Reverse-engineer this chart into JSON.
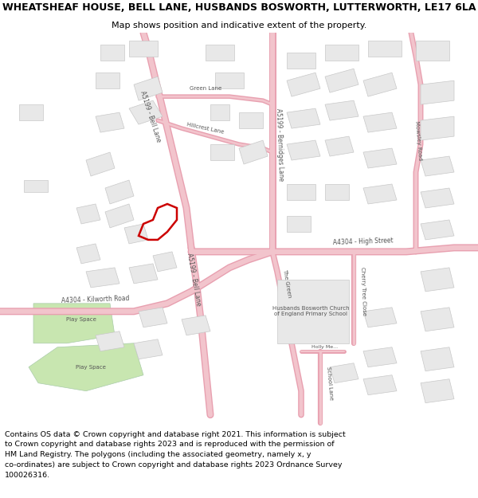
{
  "title_line1": "WHEATSHEAF HOUSE, BELL LANE, HUSBANDS BOSWORTH, LUTTERWORTH, LE17 6LA",
  "title_line2": "Map shows position and indicative extent of the property.",
  "footer": "Contains OS data © Crown copyright and database right 2021. This information is subject\nto Crown copyright and database rights 2023 and is reproduced with the permission of\nHM Land Registry. The polygons (including the associated geometry, namely x, y\nco-ordinates) are subject to Crown copyright and database rights 2023 Ordnance Survey\n100026316.",
  "bg_color": "#ffffff",
  "map_bg": "#ffffff",
  "road_major_color": "#f2c4cc",
  "road_outline_color": "#e8a0b0",
  "building_color": "#e8e8e8",
  "building_outline": "#c8c8c8",
  "green_color": "#c8e6b0",
  "plot_outline_color": "#cc0000",
  "title_fontsize": 9.0,
  "subtitle_fontsize": 8.0,
  "footer_fontsize": 6.8,
  "label_fontsize": 5.5,
  "small_label_fontsize": 5.0
}
